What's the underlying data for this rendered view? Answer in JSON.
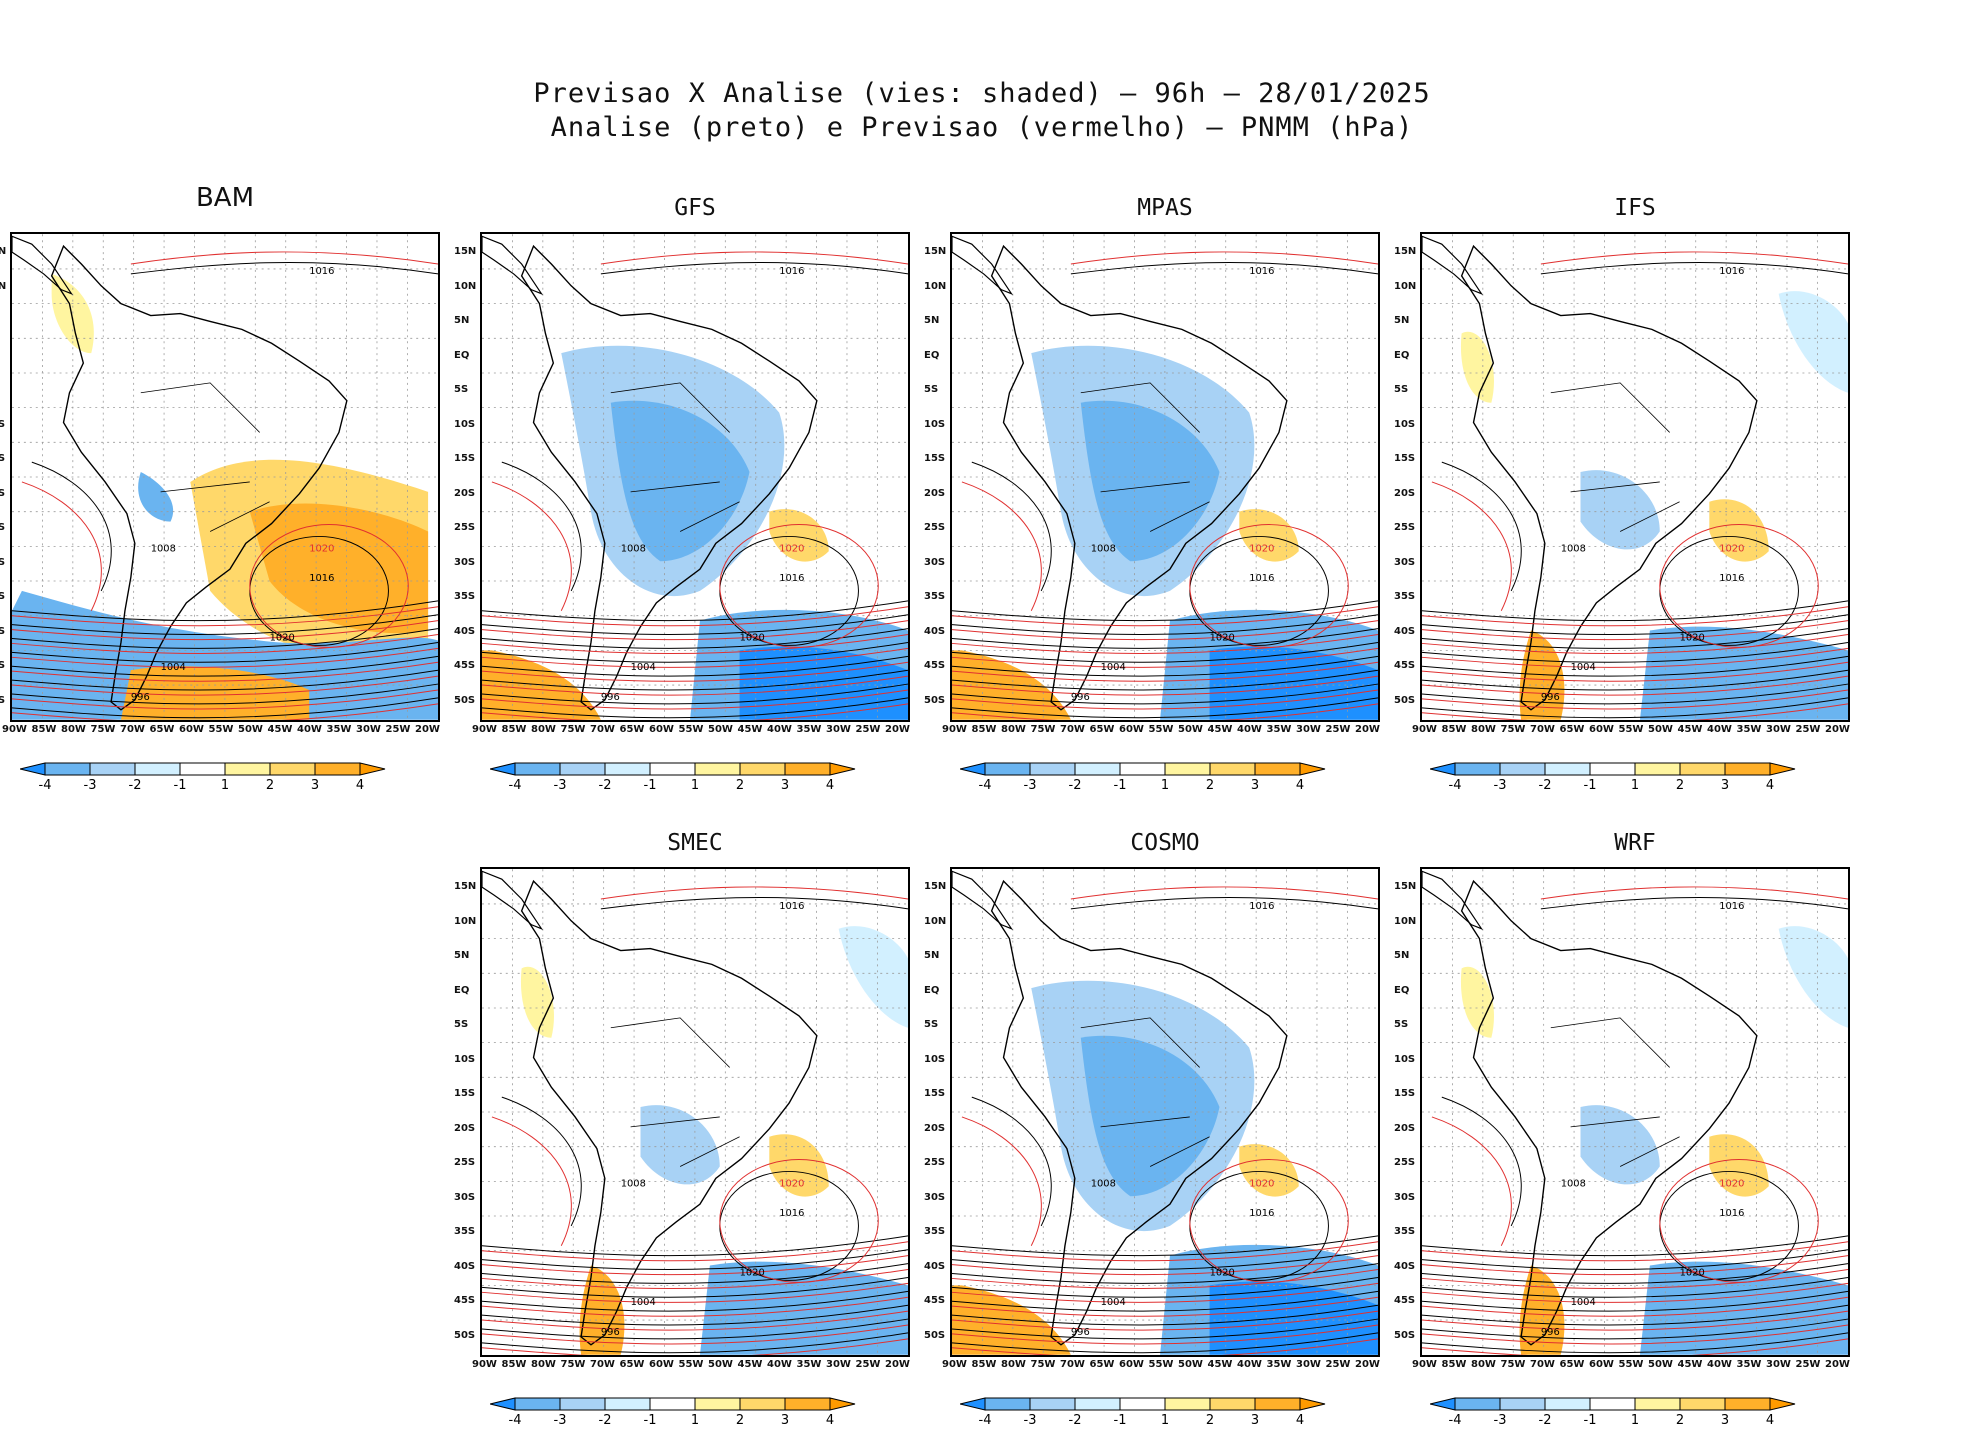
{
  "figure": {
    "title_line1": "Previsao X Analise (vies: shaded) – 96h – 28/01/2025",
    "title_line2": "Analise (preto) e Previsao (vermelho) – PNMM (hPa)"
  },
  "panels": [
    {
      "name": "BAM",
      "bias": "warm"
    },
    {
      "name": "GFS",
      "bias": "cool"
    },
    {
      "name": "MPAS",
      "bias": "cool"
    },
    {
      "name": "IFS",
      "bias": "mixed"
    },
    {
      "name": "SMEC",
      "bias": "mixed"
    },
    {
      "name": "COSMO",
      "bias": "cool"
    },
    {
      "name": "WRF",
      "bias": "mixed"
    }
  ],
  "axes": {
    "lat_labels": [
      "15N",
      "10N",
      "5N",
      "EQ",
      "5S",
      "10S",
      "15S",
      "20S",
      "25S",
      "30S",
      "35S",
      "40S",
      "45S",
      "50S"
    ],
    "lon_labels": [
      "90W",
      "85W",
      "80W",
      "75W",
      "70W",
      "65W",
      "60W",
      "55W",
      "50W",
      "45W",
      "40W",
      "35W",
      "30W",
      "25W",
      "20W"
    ]
  },
  "colorbar": {
    "labels": [
      "-4",
      "-3",
      "-2",
      "-1",
      "1",
      "2",
      "3",
      "4"
    ],
    "colors": [
      "#1e90ff",
      "#6ab4f0",
      "#a8d2f5",
      "#d2f0ff",
      "#ffffff",
      "#fff5a0",
      "#ffd86a",
      "#ffb02a",
      "#ff9b00"
    ]
  },
  "contours": {
    "isobars": [
      "996",
      "1000",
      "1004",
      "1008",
      "1012",
      "1016",
      "1020"
    ],
    "analysis_color": "#000000",
    "forecast_color": "#e03030"
  }
}
